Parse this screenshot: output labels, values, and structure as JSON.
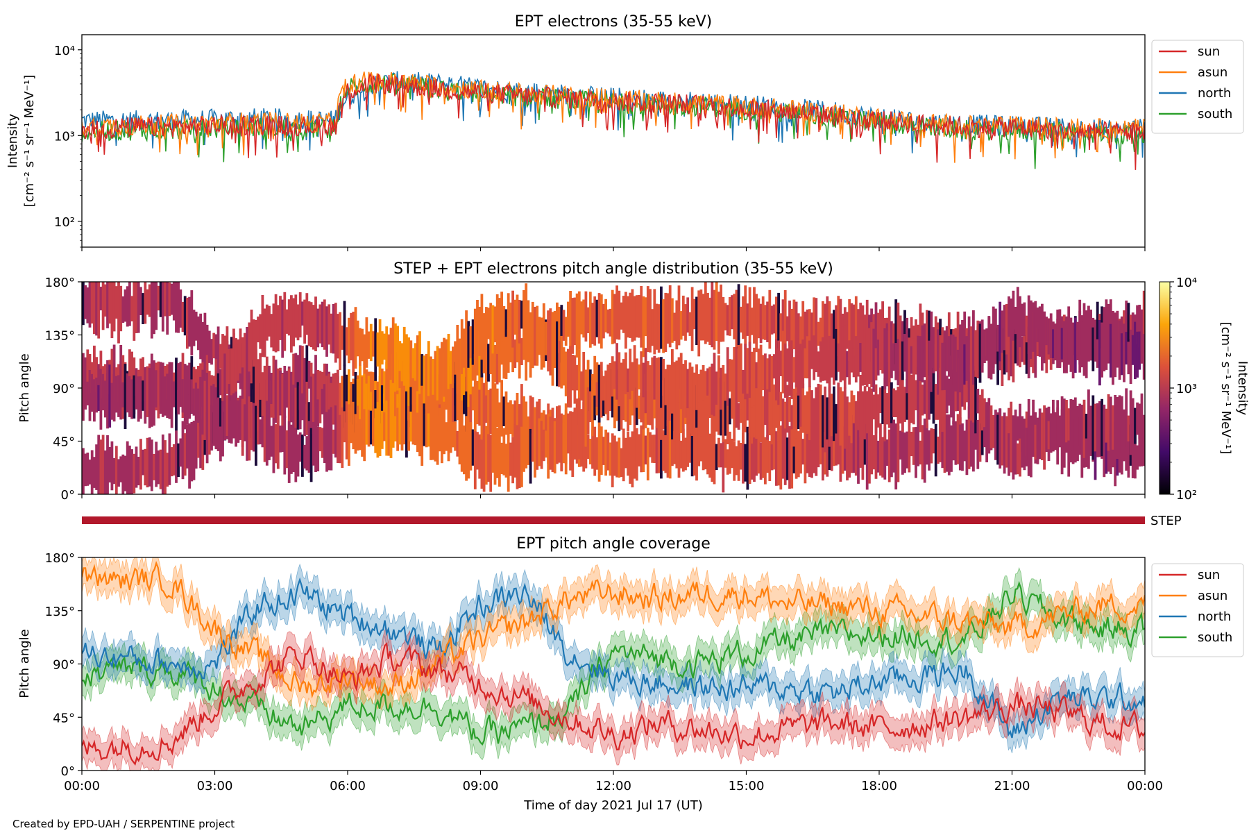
{
  "footer": "Created by EPD-UAH / SERPENTINE project",
  "colors": {
    "sun": "#d62728",
    "asun": "#ff7f0e",
    "north": "#1f77b4",
    "south": "#2ca02c",
    "step_bar": "#b2182b"
  },
  "chart_data": [
    {
      "type": "line",
      "title": "EPT electrons (35-55 keV)",
      "ylabel": [
        "Intensity",
        "[cm⁻² s⁻¹ sr⁻¹ MeV⁻¹]"
      ],
      "yscale": "log",
      "ylim": [
        50,
        15000
      ],
      "yticks": [
        {
          "value": 100,
          "label": "10²"
        },
        {
          "value": 1000,
          "label": "10³"
        },
        {
          "value": 10000,
          "label": "10⁴"
        }
      ],
      "xlim": [
        "00:00",
        "24:00"
      ],
      "legend": "outside-right",
      "series": [
        {
          "name": "sun",
          "x": [
            0,
            1,
            2,
            3,
            4,
            5,
            5.7,
            6,
            6.5,
            7,
            8,
            9,
            10,
            11,
            12,
            13,
            14,
            15,
            16,
            17,
            18,
            19,
            20,
            21,
            22,
            23,
            24
          ],
          "y": [
            1200,
            1250,
            1250,
            1300,
            1350,
            1300,
            1300,
            3300,
            4000,
            4000,
            3500,
            3200,
            2900,
            2700,
            2500,
            2400,
            2300,
            2100,
            1900,
            1700,
            1500,
            1350,
            1250,
            1250,
            1150,
            1100,
            1100
          ]
        },
        {
          "name": "asun",
          "x": [
            0,
            1,
            2,
            3,
            4,
            5,
            5.7,
            6,
            6.5,
            7,
            8,
            9,
            10,
            11,
            12,
            13,
            14,
            15,
            16,
            17,
            18,
            19,
            20,
            21,
            22,
            23,
            24
          ],
          "y": [
            1300,
            1300,
            1350,
            1400,
            1450,
            1400,
            1400,
            4200,
            4300,
            4300,
            3800,
            3400,
            3100,
            2900,
            2700,
            2500,
            2400,
            2200,
            2000,
            1800,
            1600,
            1400,
            1300,
            1300,
            1250,
            1200,
            1200
          ]
        },
        {
          "name": "north",
          "x": [
            0,
            1,
            2,
            3,
            4,
            5,
            5.7,
            6,
            6.5,
            7,
            8,
            9,
            10,
            11,
            12,
            13,
            14,
            15,
            16,
            17,
            18,
            19,
            20,
            21,
            22,
            23,
            24
          ],
          "y": [
            1500,
            1500,
            1500,
            1550,
            1600,
            1550,
            1500,
            2800,
            3800,
            4300,
            4100,
            3600,
            3300,
            3000,
            2800,
            2600,
            2500,
            2300,
            2100,
            1900,
            1600,
            1450,
            1350,
            1300,
            1250,
            1200,
            1200
          ]
        },
        {
          "name": "south",
          "x": [
            0,
            1,
            2,
            3,
            4,
            5,
            5.7,
            6,
            6.5,
            7,
            8,
            9,
            10,
            11,
            12,
            13,
            14,
            15,
            16,
            17,
            18,
            19,
            20,
            21,
            22,
            23,
            24
          ],
          "y": [
            1100,
            1150,
            1150,
            1200,
            1250,
            1200,
            1200,
            3600,
            3900,
            4000,
            3500,
            3100,
            2800,
            2600,
            2400,
            2300,
            2200,
            2000,
            1800,
            1600,
            1400,
            1250,
            1150,
            1150,
            1100,
            1050,
            1000
          ]
        }
      ]
    },
    {
      "type": "heatmap",
      "title": "STEP + EPT electrons pitch angle distribution (35-55 keV)",
      "ylabel": "Pitch angle",
      "ylim": [
        0,
        180
      ],
      "yticks": [
        "0°",
        "45°",
        "90°",
        "135°",
        "180°"
      ],
      "colorbar": {
        "label": [
          "Intensity",
          "[cm⁻² s⁻¹ sr⁻¹ MeV⁻¹]"
        ],
        "scale": "log",
        "range": [
          100,
          10000
        ],
        "ticks": [
          {
            "value": 100,
            "label": "10²"
          },
          {
            "value": 1000,
            "label": "10³"
          },
          {
            "value": 10000,
            "label": "10⁴"
          }
        ],
        "colormap": "inferno"
      },
      "note_bar": "STEP"
    },
    {
      "type": "line",
      "title": "EPT pitch angle coverage",
      "ylabel": "Pitch angle",
      "ylim": [
        0,
        180
      ],
      "yticks": [
        "0°",
        "45°",
        "90°",
        "135°",
        "180°"
      ],
      "xlabel": "Time of day 2021 Jul 17 (UT)",
      "xticks": [
        "00:00",
        "03:00",
        "06:00",
        "09:00",
        "12:00",
        "15:00",
        "18:00",
        "21:00",
        "00:00"
      ],
      "legend": "outside-right",
      "band_halfwidth_deg": 13,
      "series": [
        {
          "name": "sun",
          "x": [
            0,
            1,
            2,
            3,
            4,
            5,
            6,
            7,
            8,
            9,
            10,
            11,
            12,
            13,
            14,
            15,
            16,
            17,
            18,
            19,
            20,
            21,
            22,
            23,
            24
          ],
          "y": [
            18,
            22,
            25,
            55,
            80,
            100,
            75,
            95,
            85,
            75,
            60,
            45,
            30,
            40,
            35,
            30,
            35,
            40,
            35,
            40,
            45,
            55,
            50,
            40,
            35
          ]
        },
        {
          "name": "asun",
          "x": [
            0,
            1,
            2,
            3,
            4,
            5,
            6,
            7,
            8,
            9,
            10,
            11,
            12,
            13,
            14,
            15,
            16,
            17,
            18,
            19,
            20,
            21,
            22,
            23,
            24
          ],
          "y": [
            162,
            160,
            162,
            120,
            95,
            70,
            80,
            70,
            90,
            110,
            125,
            145,
            150,
            145,
            150,
            150,
            140,
            140,
            135,
            130,
            125,
            120,
            130,
            140,
            140
          ]
        },
        {
          "name": "north",
          "x": [
            0,
            1,
            2,
            3,
            4,
            5,
            6,
            7,
            8,
            9,
            10,
            11,
            12,
            13,
            14,
            15,
            16,
            17,
            18,
            19,
            20,
            21,
            22,
            23,
            24
          ],
          "y": [
            100,
            95,
            90,
            90,
            140,
            150,
            130,
            120,
            100,
            140,
            150,
            100,
            80,
            75,
            70,
            70,
            70,
            65,
            75,
            80,
            85,
            30,
            60,
            60,
            60
          ]
        },
        {
          "name": "south",
          "x": [
            0,
            1,
            2,
            3,
            4,
            5,
            6,
            7,
            8,
            9,
            10,
            11,
            12,
            13,
            14,
            15,
            16,
            17,
            18,
            19,
            20,
            21,
            22,
            23,
            24
          ],
          "y": [
            80,
            85,
            85,
            70,
            50,
            35,
            55,
            55,
            55,
            30,
            35,
            50,
            100,
            95,
            90,
            100,
            110,
            115,
            115,
            115,
            110,
            150,
            130,
            120,
            120
          ]
        }
      ]
    }
  ]
}
